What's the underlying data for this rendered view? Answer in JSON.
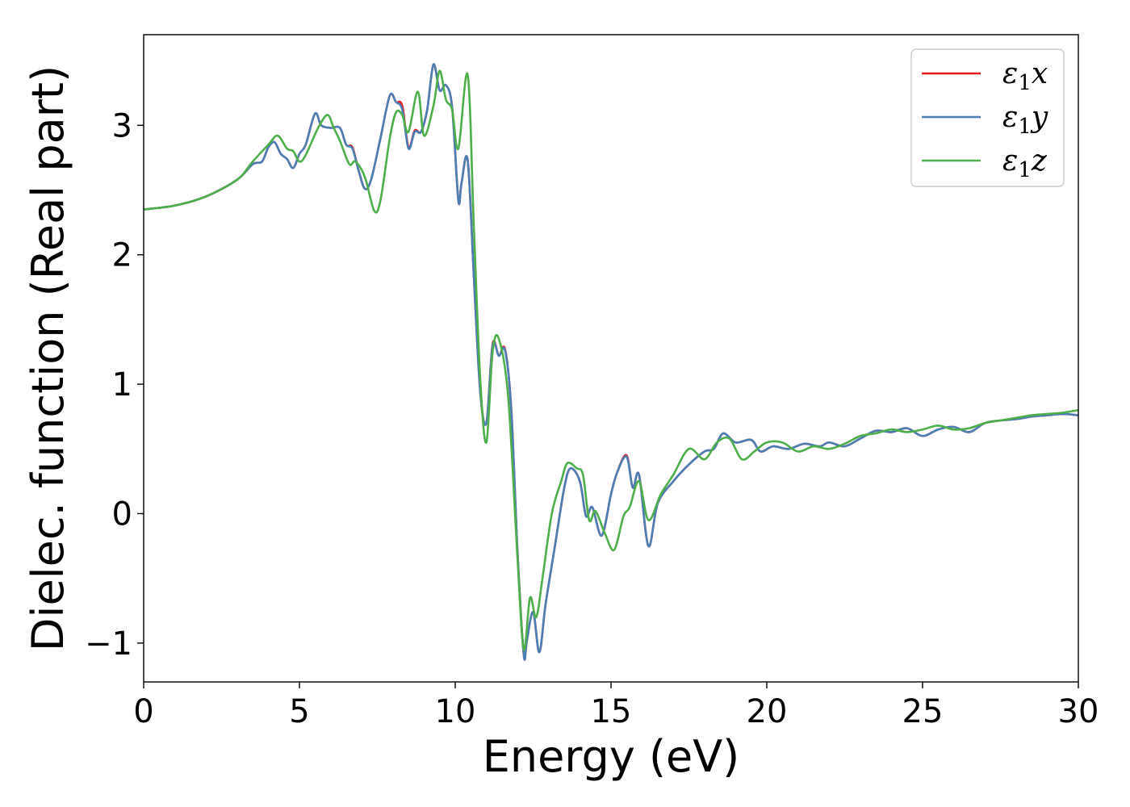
{
  "chart_data": {
    "type": "line",
    "title": "",
    "xlabel": "Energy (eV)",
    "ylabel": "Dielec. function (Real part)",
    "xlim": [
      0,
      30
    ],
    "ylim": [
      -1.3,
      3.7
    ],
    "xticks": [
      0,
      5,
      10,
      15,
      20,
      25,
      30
    ],
    "xtick_labels": [
      "0",
      "5",
      "10",
      "15",
      "20",
      "25",
      "30"
    ],
    "yticks": [
      -1,
      0,
      1,
      2,
      3
    ],
    "ytick_labels": [
      "−1",
      "0",
      "1",
      "2",
      "3"
    ],
    "grid": false,
    "legend_position": "top-right",
    "series": [
      {
        "name": "ε1x",
        "legend": {
          "epsilon": "ε",
          "sub": "1",
          "axis": "x"
        },
        "color": "#e41a1c",
        "x": [
          0,
          1,
          2,
          3,
          3.5,
          3.8,
          4.0,
          4.2,
          4.4,
          4.6,
          4.8,
          5.0,
          5.2,
          5.5,
          5.7,
          6.0,
          6.3,
          6.5,
          6.7,
          6.9,
          7.1,
          7.3,
          7.6,
          7.9,
          8.1,
          8.3,
          8.5,
          8.7,
          8.9,
          9.1,
          9.3,
          9.5,
          9.7,
          9.9,
          10.1,
          10.2,
          10.4,
          10.6,
          10.8,
          11.0,
          11.2,
          11.4,
          11.6,
          11.8,
          12.0,
          12.2,
          12.3,
          12.5,
          12.7,
          12.9,
          13.2,
          13.5,
          13.7,
          14.0,
          14.2,
          14.4,
          14.7,
          15.0,
          15.2,
          15.5,
          15.7,
          15.9,
          16.2,
          16.5,
          17.0,
          17.5,
          18.0,
          18.3,
          18.6,
          19.0,
          19.5,
          19.8,
          20.2,
          20.7,
          21.2,
          21.7,
          22.0,
          22.5,
          23.0,
          23.5,
          24.0,
          24.5,
          25.0,
          25.5,
          26.0,
          26.5,
          27.0,
          27.5,
          28.0,
          28.5,
          29.0,
          29.5,
          30.0
        ],
        "y": [
          2.35,
          2.38,
          2.45,
          2.58,
          2.7,
          2.72,
          2.83,
          2.87,
          2.78,
          2.74,
          2.67,
          2.78,
          2.85,
          3.09,
          3.0,
          2.98,
          2.98,
          2.85,
          2.83,
          2.65,
          2.51,
          2.58,
          2.9,
          3.23,
          3.18,
          3.15,
          2.83,
          2.96,
          2.95,
          3.12,
          3.47,
          3.27,
          3.31,
          3.14,
          2.42,
          2.55,
          2.73,
          1.82,
          0.95,
          0.7,
          1.31,
          1.22,
          1.27,
          0.8,
          -0.3,
          -1.09,
          -0.98,
          -0.76,
          -1.07,
          -0.7,
          -0.25,
          0.2,
          0.35,
          0.25,
          -0.02,
          0.05,
          -0.17,
          0.15,
          0.32,
          0.45,
          0.2,
          0.3,
          -0.25,
          0.08,
          0.25,
          0.38,
          0.48,
          0.5,
          0.62,
          0.55,
          0.57,
          0.48,
          0.52,
          0.5,
          0.54,
          0.52,
          0.55,
          0.52,
          0.58,
          0.64,
          0.63,
          0.66,
          0.6,
          0.65,
          0.67,
          0.63,
          0.7,
          0.72,
          0.73,
          0.75,
          0.76,
          0.77,
          0.76
        ]
      },
      {
        "name": "ε1y",
        "legend": {
          "epsilon": "ε",
          "sub": "1",
          "axis": "y"
        },
        "color": "#4a7fb5",
        "x": [
          0,
          1,
          2,
          3,
          3.5,
          3.8,
          4.0,
          4.2,
          4.4,
          4.6,
          4.8,
          5.0,
          5.2,
          5.5,
          5.7,
          6.0,
          6.3,
          6.5,
          6.7,
          6.9,
          7.1,
          7.3,
          7.6,
          7.9,
          8.1,
          8.3,
          8.5,
          8.7,
          8.9,
          9.1,
          9.3,
          9.5,
          9.7,
          9.9,
          10.1,
          10.2,
          10.4,
          10.6,
          10.8,
          11.0,
          11.2,
          11.4,
          11.6,
          11.8,
          12.0,
          12.2,
          12.3,
          12.5,
          12.7,
          12.9,
          13.2,
          13.5,
          13.7,
          14.0,
          14.2,
          14.4,
          14.7,
          15.0,
          15.2,
          15.5,
          15.7,
          15.9,
          16.2,
          16.5,
          17.0,
          17.5,
          18.0,
          18.3,
          18.6,
          19.0,
          19.5,
          19.8,
          20.2,
          20.7,
          21.2,
          21.7,
          22.0,
          22.5,
          23.0,
          23.5,
          24.0,
          24.5,
          25.0,
          25.5,
          26.0,
          26.5,
          27.0,
          27.5,
          28.0,
          28.5,
          29.0,
          29.5,
          30.0
        ],
        "y": [
          2.35,
          2.38,
          2.45,
          2.58,
          2.7,
          2.72,
          2.83,
          2.87,
          2.78,
          2.74,
          2.67,
          2.78,
          2.85,
          3.09,
          3.0,
          2.98,
          2.98,
          2.85,
          2.82,
          2.65,
          2.51,
          2.58,
          2.9,
          3.23,
          3.18,
          3.12,
          2.82,
          2.95,
          2.95,
          3.12,
          3.47,
          3.27,
          3.31,
          3.14,
          2.42,
          2.55,
          2.73,
          1.82,
          0.95,
          0.7,
          1.3,
          1.22,
          1.26,
          0.8,
          -0.3,
          -1.09,
          -0.98,
          -0.76,
          -1.07,
          -0.7,
          -0.25,
          0.2,
          0.35,
          0.25,
          -0.02,
          0.05,
          -0.17,
          0.15,
          0.32,
          0.44,
          0.2,
          0.3,
          -0.25,
          0.08,
          0.25,
          0.38,
          0.48,
          0.5,
          0.62,
          0.55,
          0.57,
          0.48,
          0.52,
          0.5,
          0.54,
          0.52,
          0.55,
          0.52,
          0.58,
          0.64,
          0.63,
          0.66,
          0.6,
          0.65,
          0.67,
          0.63,
          0.7,
          0.72,
          0.73,
          0.75,
          0.76,
          0.77,
          0.76
        ]
      },
      {
        "name": "ε1z",
        "legend": {
          "epsilon": "ε",
          "sub": "1",
          "axis": "z"
        },
        "color": "#4daf4a",
        "x": [
          0,
          1,
          2,
          3,
          3.5,
          4.0,
          4.3,
          4.6,
          4.8,
          5.0,
          5.2,
          5.6,
          5.9,
          6.1,
          6.3,
          6.6,
          6.8,
          7.1,
          7.4,
          7.6,
          7.9,
          8.1,
          8.3,
          8.5,
          8.8,
          9.0,
          9.3,
          9.5,
          9.7,
          9.9,
          10.1,
          10.4,
          10.6,
          10.8,
          11.0,
          11.2,
          11.4,
          11.7,
          12.0,
          12.2,
          12.4,
          12.6,
          12.8,
          13.1,
          13.4,
          13.6,
          13.9,
          14.1,
          14.3,
          14.5,
          14.8,
          15.1,
          15.4,
          15.6,
          15.9,
          16.2,
          16.6,
          17.0,
          17.5,
          18.0,
          18.4,
          18.8,
          19.2,
          19.6,
          20.0,
          20.5,
          21.0,
          21.5,
          22.0,
          22.5,
          23.0,
          23.5,
          24.0,
          24.5,
          25.0,
          25.5,
          26.0,
          26.5,
          27.0,
          27.5,
          28.0,
          28.5,
          29.0,
          29.5,
          30.0
        ],
        "y": [
          2.35,
          2.38,
          2.45,
          2.58,
          2.72,
          2.85,
          2.92,
          2.82,
          2.8,
          2.72,
          2.77,
          2.98,
          3.08,
          2.98,
          2.88,
          2.7,
          2.72,
          2.6,
          2.34,
          2.42,
          2.9,
          3.1,
          3.08,
          2.95,
          3.26,
          2.92,
          3.15,
          3.42,
          3.2,
          3.12,
          2.82,
          3.39,
          2.2,
          1.05,
          0.55,
          1.25,
          1.35,
          0.9,
          -0.35,
          -1.05,
          -0.65,
          -0.8,
          -0.5,
          0.0,
          0.25,
          0.39,
          0.35,
          0.3,
          -0.05,
          0.02,
          -0.15,
          -0.28,
          -0.02,
          0.05,
          0.25,
          -0.05,
          0.15,
          0.3,
          0.5,
          0.42,
          0.55,
          0.58,
          0.42,
          0.48,
          0.55,
          0.55,
          0.48,
          0.52,
          0.5,
          0.54,
          0.6,
          0.62,
          0.65,
          0.63,
          0.65,
          0.68,
          0.65,
          0.66,
          0.7,
          0.72,
          0.74,
          0.76,
          0.77,
          0.78,
          0.8
        ]
      }
    ]
  }
}
